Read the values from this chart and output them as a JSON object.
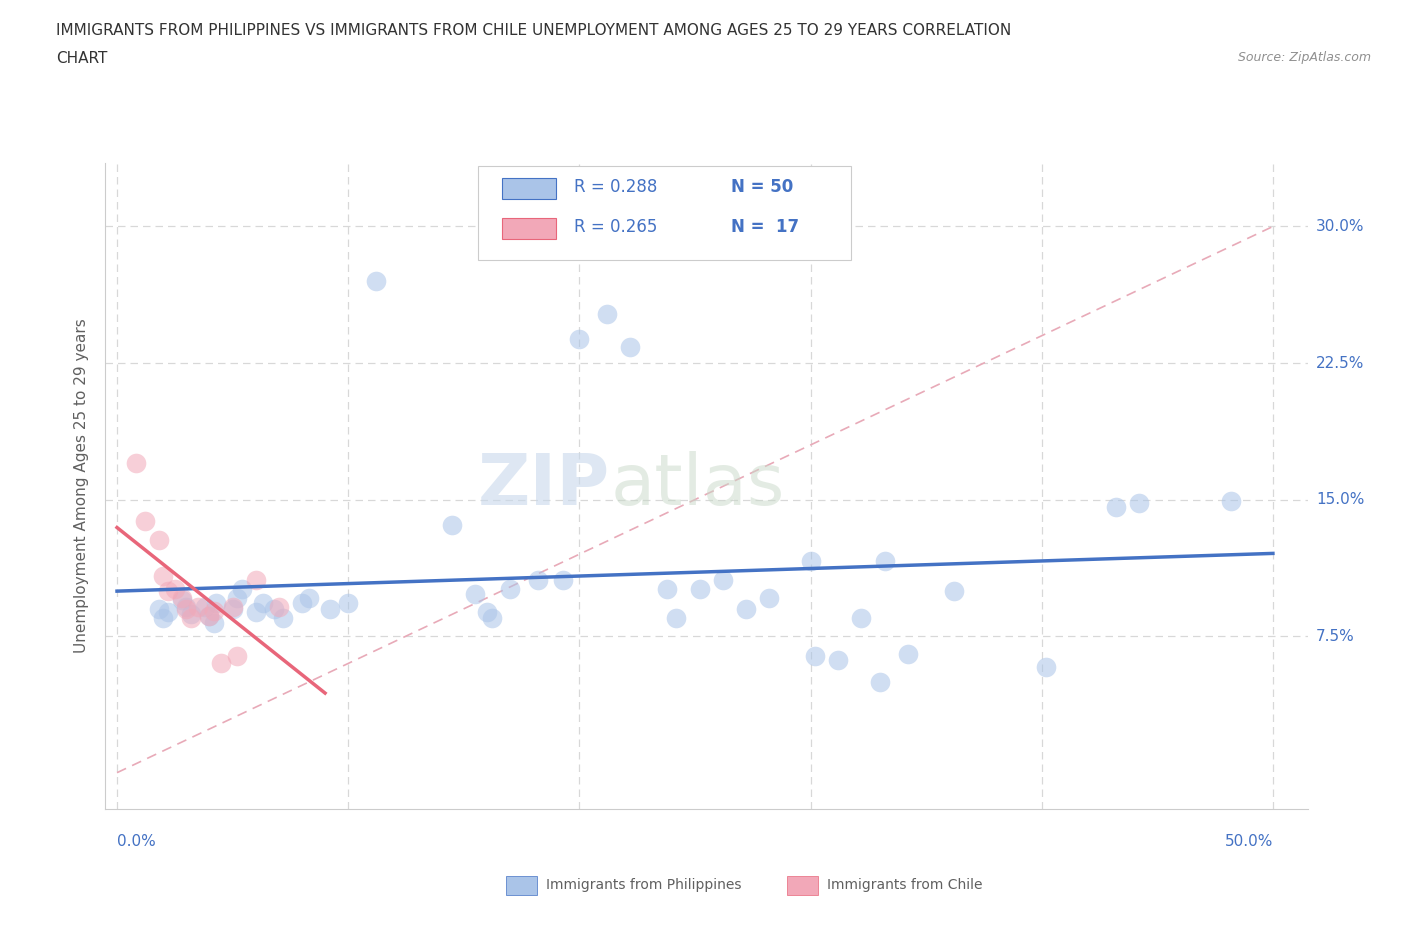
{
  "title_line1": "IMMIGRANTS FROM PHILIPPINES VS IMMIGRANTS FROM CHILE UNEMPLOYMENT AMONG AGES 25 TO 29 YEARS CORRELATION",
  "title_line2": "CHART",
  "source_text": "Source: ZipAtlas.com",
  "ylabel": "Unemployment Among Ages 25 to 29 years",
  "xlim": [
    -0.005,
    0.515
  ],
  "ylim": [
    -0.02,
    0.335
  ],
  "ytick_values": [
    0.075,
    0.15,
    0.225,
    0.3
  ],
  "ytick_labels": [
    "7.5%",
    "15.0%",
    "22.5%",
    "30.0%"
  ],
  "xtick_values": [
    0.0,
    0.1,
    0.2,
    0.3,
    0.4,
    0.5
  ],
  "watermark_zip": "ZIP",
  "watermark_atlas": "atlas",
  "legend_entries": [
    {
      "label_r": "R = 0.288",
      "label_n": "N = 50"
    },
    {
      "label_r": "R = 0.265",
      "label_n": "N =  17"
    }
  ],
  "legend_bottom": [
    {
      "label": "Immigrants from Philippines"
    },
    {
      "label": "Immigrants from Chile"
    }
  ],
  "philippines_scatter": [
    [
      0.018,
      0.09
    ],
    [
      0.02,
      0.085
    ],
    [
      0.022,
      0.088
    ],
    [
      0.028,
      0.095
    ],
    [
      0.03,
      0.091
    ],
    [
      0.032,
      0.087
    ],
    [
      0.038,
      0.091
    ],
    [
      0.04,
      0.086
    ],
    [
      0.042,
      0.082
    ],
    [
      0.043,
      0.093
    ],
    [
      0.05,
      0.09
    ],
    [
      0.052,
      0.096
    ],
    [
      0.054,
      0.101
    ],
    [
      0.06,
      0.088
    ],
    [
      0.063,
      0.093
    ],
    [
      0.068,
      0.09
    ],
    [
      0.072,
      0.085
    ],
    [
      0.08,
      0.093
    ],
    [
      0.083,
      0.096
    ],
    [
      0.092,
      0.09
    ],
    [
      0.1,
      0.093
    ],
    [
      0.112,
      0.27
    ],
    [
      0.145,
      0.136
    ],
    [
      0.155,
      0.098
    ],
    [
      0.16,
      0.088
    ],
    [
      0.162,
      0.085
    ],
    [
      0.17,
      0.101
    ],
    [
      0.182,
      0.106
    ],
    [
      0.193,
      0.106
    ],
    [
      0.2,
      0.238
    ],
    [
      0.212,
      0.252
    ],
    [
      0.222,
      0.234
    ],
    [
      0.238,
      0.101
    ],
    [
      0.242,
      0.085
    ],
    [
      0.252,
      0.101
    ],
    [
      0.262,
      0.106
    ],
    [
      0.272,
      0.09
    ],
    [
      0.282,
      0.096
    ],
    [
      0.3,
      0.116
    ],
    [
      0.302,
      0.064
    ],
    [
      0.312,
      0.062
    ],
    [
      0.322,
      0.085
    ],
    [
      0.332,
      0.116
    ],
    [
      0.342,
      0.065
    ],
    [
      0.362,
      0.1
    ],
    [
      0.402,
      0.058
    ],
    [
      0.432,
      0.146
    ],
    [
      0.442,
      0.148
    ],
    [
      0.482,
      0.149
    ],
    [
      0.33,
      0.05
    ]
  ],
  "chile_scatter": [
    [
      0.008,
      0.17
    ],
    [
      0.012,
      0.138
    ],
    [
      0.018,
      0.128
    ],
    [
      0.02,
      0.108
    ],
    [
      0.022,
      0.1
    ],
    [
      0.025,
      0.101
    ],
    [
      0.028,
      0.096
    ],
    [
      0.03,
      0.09
    ],
    [
      0.032,
      0.085
    ],
    [
      0.035,
      0.091
    ],
    [
      0.04,
      0.086
    ],
    [
      0.042,
      0.089
    ],
    [
      0.05,
      0.091
    ],
    [
      0.052,
      0.064
    ],
    [
      0.06,
      0.106
    ],
    [
      0.07,
      0.091
    ],
    [
      0.045,
      0.06
    ]
  ],
  "philippines_line_color": "#4472c4",
  "chile_line_color": "#e8667a",
  "philippines_dot_color": "#aac4e8",
  "chile_dot_color": "#f2a8b8",
  "reference_line_color": "#e8aab8",
  "scatter_size": 200,
  "scatter_alpha": 0.55,
  "background_color": "#ffffff",
  "grid_color": "#d8d8d8",
  "title_color": "#333333",
  "axis_label_color": "#4472c4",
  "tick_label_color": "#4472c4",
  "source_color": "#909090",
  "ylabel_color": "#606060",
  "legend_text_color": "#4472c4"
}
